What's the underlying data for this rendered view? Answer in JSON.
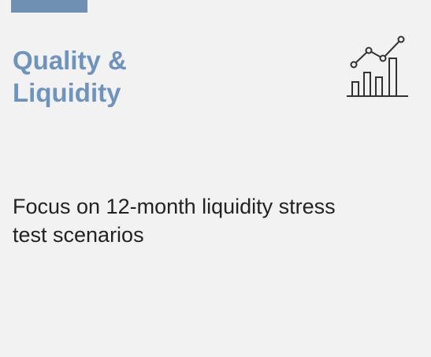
{
  "card": {
    "title_lines": [
      "Quality &",
      "Liquidity"
    ],
    "body_lines": [
      "Focus on 12-month liquidity stress",
      "test scenarios"
    ]
  }
}
